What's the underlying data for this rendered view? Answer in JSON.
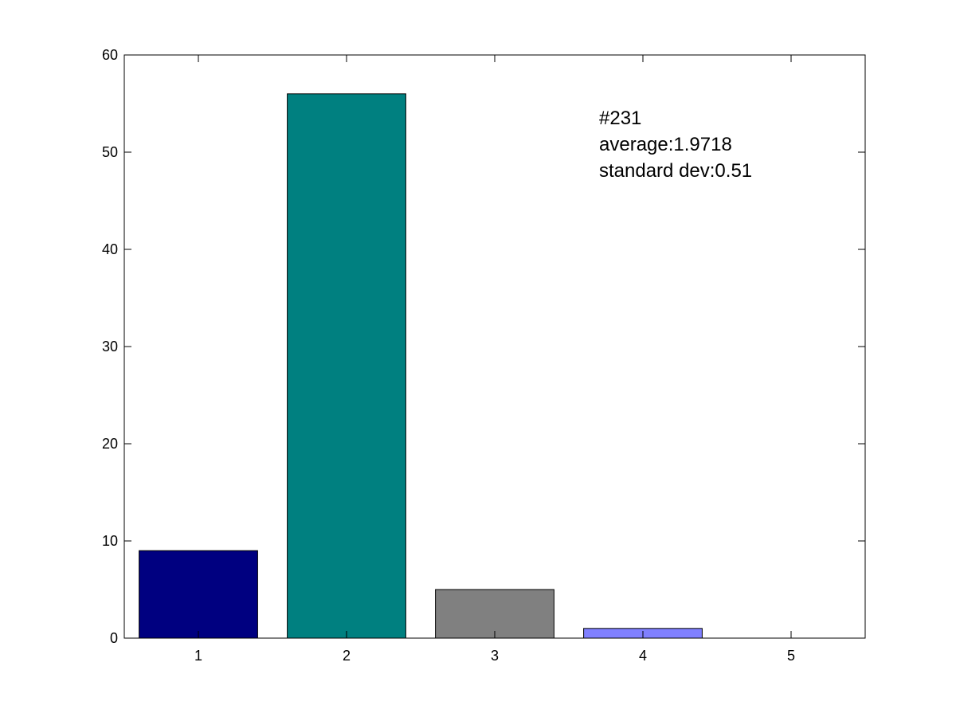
{
  "chart_data": {
    "type": "bar",
    "categories": [
      "1",
      "2",
      "3",
      "4",
      "5"
    ],
    "values": [
      9,
      56,
      5,
      1,
      0
    ],
    "colors": [
      "#000080",
      "#008080",
      "#808080",
      "#8080ff",
      "#ffffff"
    ],
    "title": "",
    "xlabel": "",
    "ylabel": "",
    "ylim": [
      0,
      60
    ],
    "yticks": [
      0,
      10,
      20,
      30,
      40,
      50,
      60
    ],
    "grid": false,
    "annotation_lines": [
      "#231",
      "average:1.9718",
      "standard dev:0.51"
    ]
  }
}
